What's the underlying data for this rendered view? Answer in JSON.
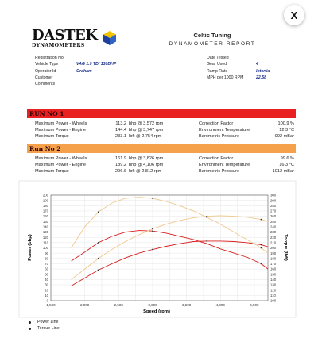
{
  "close_label": "X",
  "header": {
    "logo_main": "DASTEK",
    "logo_sub": "DYNAMOMETERS",
    "company": "Celtic Tuning",
    "report_title": "DYNAMOMETER REPORT"
  },
  "info_left": {
    "labels": [
      "Registration No:",
      "Vehicle Type",
      "Operator Id",
      "Customer",
      "Comments"
    ],
    "values": [
      "",
      "VAG 1.9 TDI 130BHP",
      "Graham",
      "",
      ""
    ]
  },
  "info_right": {
    "labels": [
      "Date Tested",
      "Gear Used",
      "Ramp Rate",
      "MPH per 1000 RPM"
    ],
    "values": [
      "",
      "4",
      "Intertia",
      "22.58"
    ]
  },
  "runs": [
    {
      "title": "RUN NO 1",
      "color": "#e82020",
      "labels": [
        "Maximum Power - Wheels",
        "Maximum Power - Engine",
        "Maximum Torque"
      ],
      "values": [
        "113.2",
        "144.4",
        "233.1"
      ],
      "units": [
        "bhp @ 3,572 rpm",
        "bhp @ 3,747 rpm",
        "lbft @ 2,754 rpm"
      ],
      "cond_labels": [
        "Correction Factor",
        "Environment Temperature",
        "Barometric Pressure"
      ],
      "cond_values": [
        "100.9 %",
        "12.3 °C",
        "992 mBar"
      ]
    },
    {
      "title": "Run No 2",
      "color": "#f5a04a",
      "labels": [
        "Maximum Power - Wheels",
        "Maximum Power - Engine",
        "Maximum Torque"
      ],
      "values": [
        "161.9",
        "189.2",
        "296.6"
      ],
      "units": [
        "bhp @ 3,826 rpm",
        "bhp @ 4,106 rpm",
        "lbft @ 2,812 rpm"
      ],
      "cond_labels": [
        "Correction Factor",
        "Environment Temperature",
        "Barometric Pressure"
      ],
      "cond_values": [
        "99.6 %",
        "16.3 °C",
        "1012 mBar"
      ]
    }
  ],
  "chart_data": {
    "type": "line",
    "xlabel": "Speed (rpm)",
    "ylabel": "Power (bhp)",
    "y2label": "Torque (lbft)",
    "xlim": [
      1500,
      4700
    ],
    "ylim": [
      0,
      200
    ],
    "y2lim": [
      100,
      300
    ],
    "x_ticks": [
      "1,500",
      "2,000",
      "2,500",
      "3,000",
      "3,500",
      "4,000",
      "4,500"
    ],
    "y_ticks": [
      "0",
      "10",
      "20",
      "30",
      "40",
      "50",
      "60",
      "70",
      "80",
      "90",
      "100",
      "110",
      "120",
      "130",
      "140",
      "150",
      "160",
      "170",
      "180",
      "190",
      "200"
    ],
    "y2_ticks": [
      "100",
      "110",
      "120",
      "130",
      "140",
      "150",
      "160",
      "170",
      "180",
      "190",
      "200",
      "210",
      "220",
      "230",
      "240",
      "250",
      "260",
      "270",
      "280",
      "290",
      "300"
    ],
    "grid": true,
    "series": [
      {
        "name": "Run 1 Power",
        "color": "#d91e1e",
        "axis": "left",
        "x": [
          1800,
          2000,
          2200,
          2400,
          2600,
          2800,
          3000,
          3200,
          3400,
          3600,
          3800,
          4000,
          4200,
          4400,
          4600,
          4700
        ],
        "y": [
          28,
          43,
          58,
          70,
          81,
          90,
          97,
          103,
          108,
          112,
          113,
          113,
          112,
          110,
          106,
          102
        ]
      },
      {
        "name": "Run 1 Torque",
        "color": "#d91e1e",
        "axis": "right",
        "x": [
          1800,
          2000,
          2200,
          2400,
          2600,
          2800,
          3000,
          3200,
          3400,
          3600,
          3800,
          4000,
          4200,
          4400,
          4600,
          4700
        ],
        "y": [
          175,
          192,
          210,
          222,
          230,
          233,
          232,
          228,
          222,
          216,
          208,
          198,
          190,
          182,
          170,
          160
        ]
      },
      {
        "name": "Run 2 Power",
        "color": "#f0c88c",
        "axis": "left",
        "x": [
          1800,
          2000,
          2200,
          2400,
          2600,
          2800,
          3000,
          3200,
          3400,
          3600,
          3800,
          4000,
          4200,
          4400,
          4600,
          4700
        ],
        "y": [
          40,
          60,
          80,
          97,
          112,
          125,
          136,
          145,
          152,
          157,
          160,
          161,
          160,
          158,
          154,
          150
        ]
      },
      {
        "name": "Run 2 Torque",
        "color": "#f0c88c",
        "axis": "right",
        "x": [
          1800,
          2000,
          2200,
          2400,
          2600,
          2800,
          3000,
          3200,
          3400,
          3600,
          3800,
          4000,
          4200,
          4400,
          4600,
          4700
        ],
        "y": [
          200,
          240,
          268,
          285,
          294,
          296,
          294,
          288,
          280,
          270,
          258,
          245,
          230,
          215,
          200,
          190
        ]
      }
    ]
  },
  "legend": {
    "items": [
      "Power Line",
      "Torque Line"
    ]
  }
}
